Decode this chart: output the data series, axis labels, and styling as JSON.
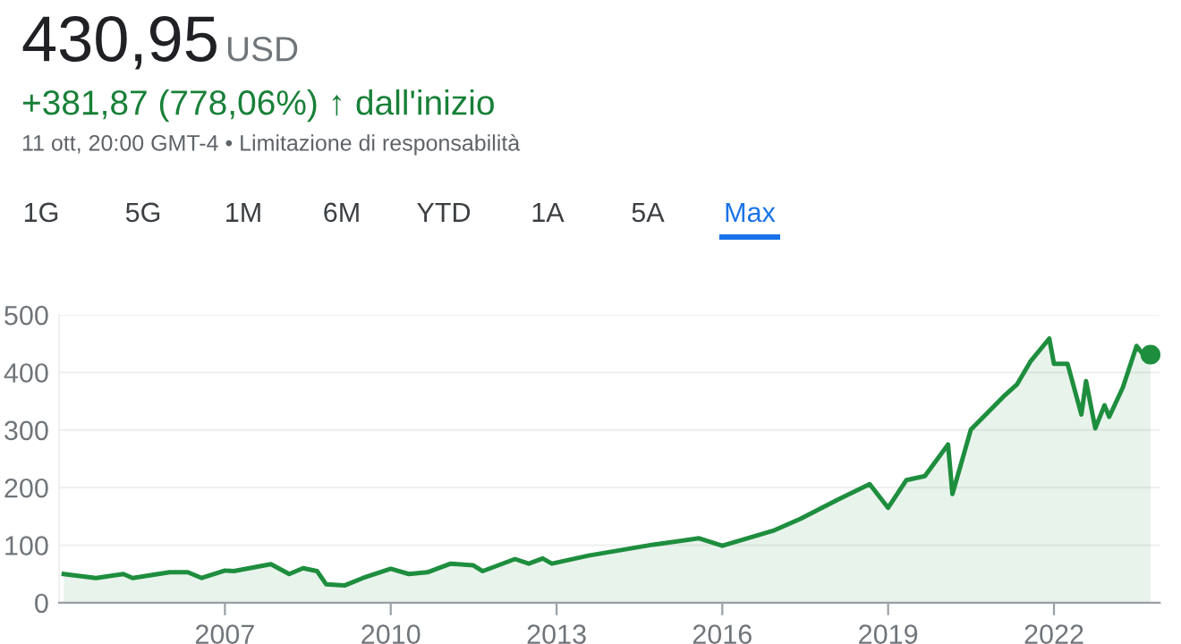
{
  "chart_data": {
    "type": "area",
    "annotations": [
      "430,95",
      "USD",
      "+381,87 (778,06%) ↑ dall'inizio",
      "11 ott, 20:00 GMT-4 • Limitazione di responsabilità",
      "1G",
      "5G",
      "1M",
      "6M",
      "YTD",
      "1A",
      "5A",
      "Max"
    ],
    "series": [
      {
        "color": "#1e8e3e",
        "x": [
          "2004-02",
          "2004-09",
          "2005-03",
          "2005-05",
          "2006-01",
          "2006-05",
          "2006-08",
          "2007-01",
          "2007-03",
          "2007-11",
          "2008-03",
          "2008-06",
          "2008-09",
          "2008-11",
          "2009-03",
          "2009-07",
          "2010-01",
          "2010-05",
          "2010-09",
          "2011-02",
          "2011-07",
          "2011-09",
          "2012-04",
          "2012-07",
          "2012-10",
          "2012-12",
          "2013-08",
          "2014-10",
          "2015-08",
          "2016-01",
          "2016-12",
          "2017-06",
          "2018-02",
          "2018-09",
          "2019-01",
          "2019-05",
          "2019-09",
          "2020-02",
          "2020-03",
          "2020-07",
          "2021-02",
          "2021-05",
          "2021-08",
          "2021-12",
          "2022-01",
          "2022-04",
          "2022-07",
          "2022-08",
          "2022-10",
          "2022-12",
          "2023-01",
          "2023-04",
          "2023-07",
          "2023-09",
          "2023-10"
        ],
        "values": [
          50,
          43,
          50,
          43,
          53,
          53,
          43,
          56,
          55,
          67,
          50,
          60,
          55,
          32,
          30,
          43,
          59,
          50,
          53,
          68,
          65,
          55,
          76,
          68,
          77,
          68,
          82,
          101,
          112,
          99,
          125,
          146,
          179,
          206,
          165,
          213,
          220,
          275,
          189,
          301,
          358,
          379,
          420,
          459,
          415,
          415,
          327,
          385,
          303,
          343,
          323,
          374,
          446,
          425,
          431
        ]
      },
      {
        "type": "scatter",
        "color": "#1e8e3e",
        "x": [
          "2023-10"
        ],
        "values": [
          431
        ],
        "marker": "circle"
      }
    ],
    "xlim": [
      "2004-01",
      "2023-12"
    ],
    "xticks": [
      "2007",
      "2010",
      "2013",
      "2016",
      "2019",
      "2022"
    ],
    "ylim": [
      0,
      500
    ],
    "yticks": [
      0,
      100,
      200,
      300,
      400,
      500
    ],
    "grid": "y"
  }
}
